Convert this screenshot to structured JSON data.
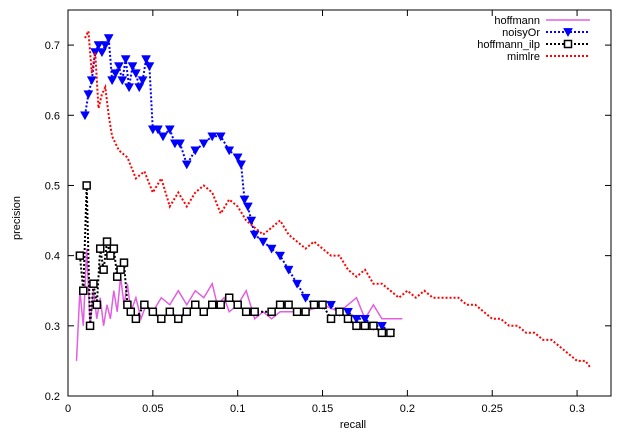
{
  "chart_data": {
    "type": "line",
    "title": "",
    "xlabel": "recall",
    "ylabel": "precision",
    "xlim": [
      0,
      0.32
    ],
    "ylim": [
      0.2,
      0.75
    ],
    "grid": false,
    "legend_position": "top-right",
    "x_ticks": [
      "0",
      "0.05",
      "0.1",
      "0.15",
      "0.2",
      "0.25",
      "0.3"
    ],
    "y_ticks": [
      "0.2",
      "0.3",
      "0.4",
      "0.5",
      "0.6",
      "0.7"
    ],
    "series": [
      {
        "name": "hoffmann",
        "color": "#e060e0",
        "style": "solid",
        "marker": "none",
        "points": [
          [
            0.005,
            0.25
          ],
          [
            0.007,
            0.35
          ],
          [
            0.009,
            0.3
          ],
          [
            0.011,
            0.41
          ],
          [
            0.013,
            0.3
          ],
          [
            0.015,
            0.35
          ],
          [
            0.017,
            0.31
          ],
          [
            0.019,
            0.34
          ],
          [
            0.021,
            0.3
          ],
          [
            0.023,
            0.33
          ],
          [
            0.025,
            0.31
          ],
          [
            0.027,
            0.35
          ],
          [
            0.029,
            0.32
          ],
          [
            0.031,
            0.37
          ],
          [
            0.033,
            0.33
          ],
          [
            0.035,
            0.36
          ],
          [
            0.037,
            0.32
          ],
          [
            0.04,
            0.34
          ],
          [
            0.043,
            0.31
          ],
          [
            0.046,
            0.33
          ],
          [
            0.05,
            0.32
          ],
          [
            0.055,
            0.34
          ],
          [
            0.06,
            0.33
          ],
          [
            0.065,
            0.35
          ],
          [
            0.07,
            0.33
          ],
          [
            0.075,
            0.35
          ],
          [
            0.08,
            0.34
          ],
          [
            0.085,
            0.36
          ],
          [
            0.088,
            0.33
          ],
          [
            0.092,
            0.34
          ],
          [
            0.095,
            0.32
          ],
          [
            0.1,
            0.33
          ],
          [
            0.105,
            0.35
          ],
          [
            0.11,
            0.31
          ],
          [
            0.115,
            0.32
          ],
          [
            0.12,
            0.31
          ],
          [
            0.125,
            0.32
          ],
          [
            0.13,
            0.32
          ],
          [
            0.14,
            0.32
          ],
          [
            0.15,
            0.33
          ],
          [
            0.16,
            0.32
          ],
          [
            0.17,
            0.34
          ],
          [
            0.175,
            0.31
          ],
          [
            0.18,
            0.33
          ],
          [
            0.185,
            0.31
          ],
          [
            0.19,
            0.31
          ],
          [
            0.197,
            0.31
          ]
        ]
      },
      {
        "name": "noisyOr",
        "color": "#0000ff",
        "style": "dotted",
        "marker": "triangle-down",
        "points": [
          [
            0.01,
            0.6
          ],
          [
            0.012,
            0.63
          ],
          [
            0.014,
            0.65
          ],
          [
            0.016,
            0.69
          ],
          [
            0.018,
            0.7
          ],
          [
            0.02,
            0.69
          ],
          [
            0.022,
            0.7
          ],
          [
            0.024,
            0.71
          ],
          [
            0.026,
            0.65
          ],
          [
            0.028,
            0.66
          ],
          [
            0.03,
            0.67
          ],
          [
            0.032,
            0.65
          ],
          [
            0.034,
            0.68
          ],
          [
            0.036,
            0.64
          ],
          [
            0.038,
            0.67
          ],
          [
            0.04,
            0.66
          ],
          [
            0.042,
            0.64
          ],
          [
            0.044,
            0.65
          ],
          [
            0.046,
            0.68
          ],
          [
            0.048,
            0.67
          ],
          [
            0.05,
            0.58
          ],
          [
            0.053,
            0.58
          ],
          [
            0.056,
            0.57
          ],
          [
            0.06,
            0.58
          ],
          [
            0.063,
            0.56
          ],
          [
            0.066,
            0.56
          ],
          [
            0.07,
            0.53
          ],
          [
            0.075,
            0.55
          ],
          [
            0.08,
            0.56
          ],
          [
            0.085,
            0.57
          ],
          [
            0.09,
            0.57
          ],
          [
            0.095,
            0.55
          ],
          [
            0.1,
            0.54
          ],
          [
            0.102,
            0.53
          ],
          [
            0.104,
            0.48
          ],
          [
            0.106,
            0.47
          ],
          [
            0.108,
            0.45
          ],
          [
            0.11,
            0.43
          ],
          [
            0.115,
            0.42
          ],
          [
            0.12,
            0.41
          ],
          [
            0.125,
            0.4
          ],
          [
            0.13,
            0.38
          ],
          [
            0.135,
            0.36
          ],
          [
            0.14,
            0.34
          ],
          [
            0.145,
            0.33
          ],
          [
            0.15,
            0.33
          ],
          [
            0.155,
            0.33
          ],
          [
            0.16,
            0.32
          ],
          [
            0.165,
            0.32
          ],
          [
            0.17,
            0.31
          ],
          [
            0.175,
            0.31
          ],
          [
            0.18,
            0.3
          ],
          [
            0.185,
            0.3
          ],
          [
            0.19,
            0.29
          ]
        ]
      },
      {
        "name": "hoffmann_ilp",
        "color": "#000000",
        "style": "dotted",
        "marker": "square-open",
        "points": [
          [
            0.007,
            0.4
          ],
          [
            0.009,
            0.35
          ],
          [
            0.011,
            0.5
          ],
          [
            0.013,
            0.3
          ],
          [
            0.015,
            0.36
          ],
          [
            0.017,
            0.33
          ],
          [
            0.019,
            0.41
          ],
          [
            0.021,
            0.38
          ],
          [
            0.023,
            0.42
          ],
          [
            0.025,
            0.4
          ],
          [
            0.027,
            0.41
          ],
          [
            0.029,
            0.37
          ],
          [
            0.031,
            0.38
          ],
          [
            0.033,
            0.39
          ],
          [
            0.035,
            0.33
          ],
          [
            0.037,
            0.32
          ],
          [
            0.04,
            0.31
          ],
          [
            0.045,
            0.33
          ],
          [
            0.05,
            0.32
          ],
          [
            0.055,
            0.31
          ],
          [
            0.06,
            0.32
          ],
          [
            0.065,
            0.31
          ],
          [
            0.07,
            0.32
          ],
          [
            0.075,
            0.33
          ],
          [
            0.08,
            0.32
          ],
          [
            0.085,
            0.33
          ],
          [
            0.09,
            0.33
          ],
          [
            0.095,
            0.34
          ],
          [
            0.1,
            0.33
          ],
          [
            0.105,
            0.32
          ],
          [
            0.11,
            0.32
          ],
          [
            0.12,
            0.32
          ],
          [
            0.125,
            0.33
          ],
          [
            0.13,
            0.33
          ],
          [
            0.135,
            0.32
          ],
          [
            0.14,
            0.32
          ],
          [
            0.145,
            0.33
          ],
          [
            0.15,
            0.33
          ],
          [
            0.155,
            0.31
          ],
          [
            0.16,
            0.32
          ],
          [
            0.165,
            0.31
          ],
          [
            0.17,
            0.3
          ],
          [
            0.175,
            0.3
          ],
          [
            0.18,
            0.3
          ],
          [
            0.185,
            0.29
          ],
          [
            0.19,
            0.29
          ]
        ]
      },
      {
        "name": "mimlre",
        "color": "#ff0000",
        "style": "dotted",
        "marker": "none",
        "points": [
          [
            0.01,
            0.71
          ],
          [
            0.012,
            0.72
          ],
          [
            0.014,
            0.66
          ],
          [
            0.016,
            0.69
          ],
          [
            0.018,
            0.61
          ],
          [
            0.02,
            0.63
          ],
          [
            0.022,
            0.64
          ],
          [
            0.024,
            0.6
          ],
          [
            0.026,
            0.57
          ],
          [
            0.03,
            0.55
          ],
          [
            0.035,
            0.54
          ],
          [
            0.04,
            0.51
          ],
          [
            0.045,
            0.52
          ],
          [
            0.05,
            0.49
          ],
          [
            0.055,
            0.51
          ],
          [
            0.06,
            0.47
          ],
          [
            0.065,
            0.49
          ],
          [
            0.07,
            0.47
          ],
          [
            0.075,
            0.49
          ],
          [
            0.08,
            0.5
          ],
          [
            0.085,
            0.49
          ],
          [
            0.09,
            0.46
          ],
          [
            0.095,
            0.48
          ],
          [
            0.1,
            0.47
          ],
          [
            0.105,
            0.45
          ],
          [
            0.11,
            0.44
          ],
          [
            0.115,
            0.43
          ],
          [
            0.12,
            0.44
          ],
          [
            0.125,
            0.45
          ],
          [
            0.13,
            0.43
          ],
          [
            0.135,
            0.42
          ],
          [
            0.14,
            0.41
          ],
          [
            0.145,
            0.42
          ],
          [
            0.15,
            0.41
          ],
          [
            0.155,
            0.4
          ],
          [
            0.16,
            0.4
          ],
          [
            0.165,
            0.38
          ],
          [
            0.17,
            0.37
          ],
          [
            0.175,
            0.38
          ],
          [
            0.18,
            0.36
          ],
          [
            0.185,
            0.36
          ],
          [
            0.19,
            0.35
          ],
          [
            0.195,
            0.34
          ],
          [
            0.2,
            0.35
          ],
          [
            0.205,
            0.34
          ],
          [
            0.21,
            0.35
          ],
          [
            0.215,
            0.34
          ],
          [
            0.22,
            0.34
          ],
          [
            0.225,
            0.34
          ],
          [
            0.23,
            0.34
          ],
          [
            0.235,
            0.33
          ],
          [
            0.24,
            0.33
          ],
          [
            0.245,
            0.32
          ],
          [
            0.25,
            0.31
          ],
          [
            0.255,
            0.31
          ],
          [
            0.26,
            0.3
          ],
          [
            0.265,
            0.3
          ],
          [
            0.27,
            0.29
          ],
          [
            0.275,
            0.29
          ],
          [
            0.28,
            0.28
          ],
          [
            0.285,
            0.28
          ],
          [
            0.29,
            0.27
          ],
          [
            0.295,
            0.26
          ],
          [
            0.3,
            0.25
          ],
          [
            0.305,
            0.25
          ],
          [
            0.308,
            0.24
          ]
        ]
      }
    ]
  }
}
